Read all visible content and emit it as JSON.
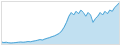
{
  "chart_data": {
    "type": "area",
    "values": [
      50,
      48,
      49,
      47,
      46,
      47,
      48,
      49,
      50,
      49,
      50,
      52,
      51,
      53,
      55,
      57,
      60,
      58,
      62,
      65,
      68,
      72,
      75,
      80,
      85,
      95,
      110,
      130,
      155,
      170,
      160,
      175,
      165,
      180,
      170,
      155,
      170,
      160,
      130,
      145,
      155,
      170,
      160,
      175,
      165,
      180,
      175,
      190,
      200,
      210
    ],
    "color": "#4da6d8",
    "xlim": [
      0,
      49
    ],
    "ylim": [
      40,
      215
    ],
    "tick_labels": false
  }
}
